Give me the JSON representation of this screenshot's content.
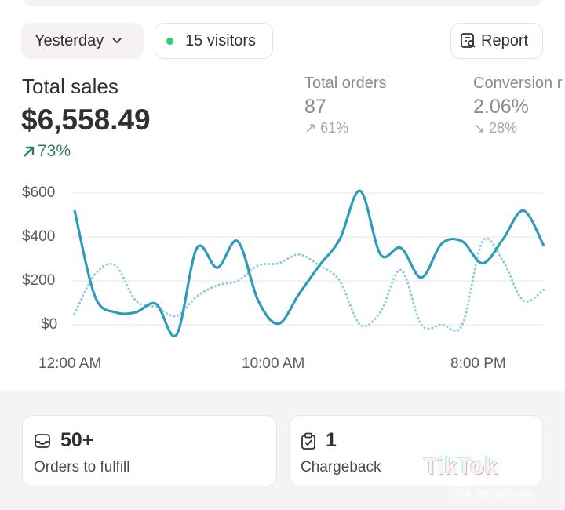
{
  "toolbar": {
    "period": "Yesterday",
    "visitors": "15 visitors",
    "report": "Report"
  },
  "metrics": {
    "total_sales": {
      "title": "Total sales",
      "value": "$6,558.49",
      "delta": "73%",
      "trend": "up"
    },
    "total_orders": {
      "title": "Total orders",
      "value": "87",
      "delta": "61%",
      "trend": "up"
    },
    "conversion": {
      "title": "Conversion r",
      "value": "2.06%",
      "delta": "28%",
      "trend": "down"
    }
  },
  "colors": {
    "primary_line": "#2d9cbb",
    "comparison_line": "#8ecbdc",
    "positive": "#2d7f58",
    "live_dot": "#29d07d"
  },
  "chart_data": {
    "type": "line",
    "x": [
      0,
      1,
      2,
      3,
      4,
      5,
      6,
      7,
      8,
      9,
      10,
      11,
      12,
      13,
      14,
      15,
      16,
      17,
      18,
      19,
      20,
      21,
      22,
      23
    ],
    "x_tick_labels": [
      "12:00 AM",
      "10:00 AM",
      "8:00 PM"
    ],
    "x_tick_hours": [
      0,
      10,
      20
    ],
    "y_tick_labels": [
      "$600",
      "$400",
      "$200",
      "$0"
    ],
    "y_ticks": [
      600,
      400,
      200,
      0
    ],
    "ylim": [
      -60,
      640
    ],
    "grid": true,
    "series": [
      {
        "style": "solid",
        "values": [
          521,
          130,
          57,
          57,
          95,
          -45,
          350,
          260,
          380,
          110,
          5,
          140,
          270,
          390,
          610,
          320,
          350,
          215,
          370,
          380,
          280,
          390,
          520,
          360
        ]
      },
      {
        "style": "dotted",
        "values": [
          50,
          230,
          270,
          110,
          80,
          40,
          130,
          180,
          200,
          270,
          280,
          320,
          270,
          200,
          0,
          60,
          250,
          0,
          0,
          0,
          380,
          290,
          110,
          160
        ]
      }
    ]
  },
  "cards": [
    {
      "value": "50+",
      "label": "Orders to fulfill"
    },
    {
      "value": "1",
      "label": "Chargeback"
    }
  ],
  "watermark": {
    "brand": "TikTok",
    "handle": "@purplepinky56"
  }
}
